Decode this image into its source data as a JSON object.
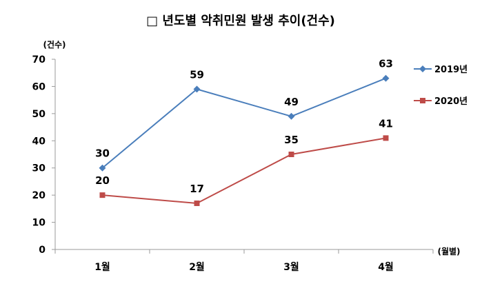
{
  "chart_data": {
    "type": "line",
    "title": "□ 년도별 악취민원 발생 추이(건수)",
    "ylabel": "(건수)",
    "xlabel": "(월별)",
    "categories": [
      "1월",
      "2월",
      "3월",
      "4월"
    ],
    "ylim": [
      0,
      70
    ],
    "yticks": [
      0,
      10,
      20,
      30,
      40,
      50,
      60,
      70
    ],
    "grid": false,
    "legend_position": "right",
    "series": [
      {
        "name": "2019년",
        "values": [
          30,
          59,
          49,
          63
        ],
        "color": "#4a7ebb",
        "marker": "diamond"
      },
      {
        "name": "2020년",
        "values": [
          20,
          17,
          35,
          41
        ],
        "color": "#be4b48",
        "marker": "square"
      }
    ]
  }
}
